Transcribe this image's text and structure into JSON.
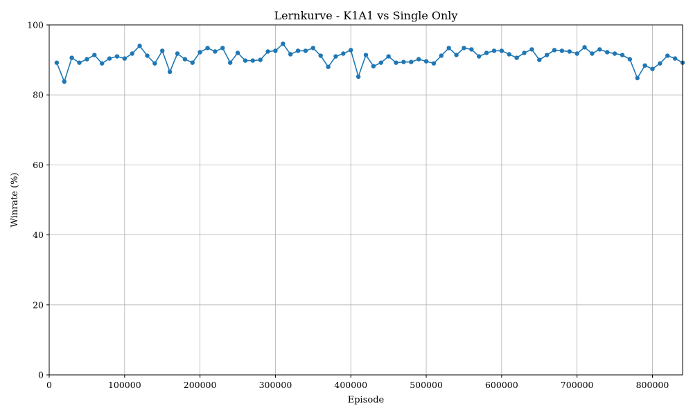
{
  "chart_data": {
    "type": "line",
    "title": "Lernkurve - K1A1 vs Single Only",
    "xlabel": "Episode",
    "ylabel": "Winrate (%)",
    "xlim": [
      0,
      840000
    ],
    "ylim": [
      0,
      100
    ],
    "xticks": [
      0,
      100000,
      200000,
      300000,
      400000,
      500000,
      600000,
      700000,
      800000
    ],
    "yticks": [
      0,
      20,
      40,
      60,
      80,
      100
    ],
    "grid": true,
    "series_color": "#1f77b4",
    "x": [
      10000,
      20000,
      30000,
      40000,
      50000,
      60000,
      70000,
      80000,
      90000,
      100000,
      110000,
      120000,
      130000,
      140000,
      150000,
      160000,
      170000,
      180000,
      190000,
      200000,
      210000,
      220000,
      230000,
      240000,
      250000,
      260000,
      270000,
      280000,
      290000,
      300000,
      310000,
      320000,
      330000,
      340000,
      350000,
      360000,
      370000,
      380000,
      390000,
      400000,
      410000,
      420000,
      430000,
      440000,
      450000,
      460000,
      470000,
      480000,
      490000,
      500000,
      510000,
      520000,
      530000,
      540000,
      550000,
      560000,
      570000,
      580000,
      590000,
      600000,
      610000,
      620000,
      630000,
      640000,
      650000,
      660000,
      670000,
      680000,
      690000,
      700000,
      710000,
      720000,
      730000,
      740000,
      750000,
      760000,
      770000,
      780000,
      790000,
      800000,
      810000,
      820000,
      830000,
      840000
    ],
    "y": [
      89.2,
      83.8,
      90.6,
      89.2,
      90.2,
      91.4,
      89.0,
      90.4,
      91.0,
      90.4,
      91.8,
      94.0,
      91.2,
      89.0,
      92.6,
      86.6,
      91.8,
      90.2,
      89.2,
      92.2,
      93.4,
      92.4,
      93.4,
      89.2,
      92.0,
      89.8,
      89.8,
      90.0,
      92.4,
      92.6,
      94.6,
      91.6,
      92.6,
      92.6,
      93.4,
      91.2,
      88.0,
      91.0,
      91.8,
      92.8,
      85.2,
      91.4,
      88.2,
      89.2,
      91.0,
      89.2,
      89.4,
      89.4,
      90.2,
      89.6,
      89.0,
      91.2,
      93.4,
      91.4,
      93.4,
      93.0,
      91.0,
      92.0,
      92.6,
      92.6,
      91.6,
      90.6,
      92.0,
      93.0,
      90.0,
      91.4,
      92.8,
      92.6,
      92.4,
      91.8,
      93.6,
      91.8,
      93.0,
      92.2,
      91.8,
      91.4,
      90.2,
      84.8,
      88.4,
      87.4,
      89.0,
      91.2,
      90.4,
      89.2
    ]
  }
}
